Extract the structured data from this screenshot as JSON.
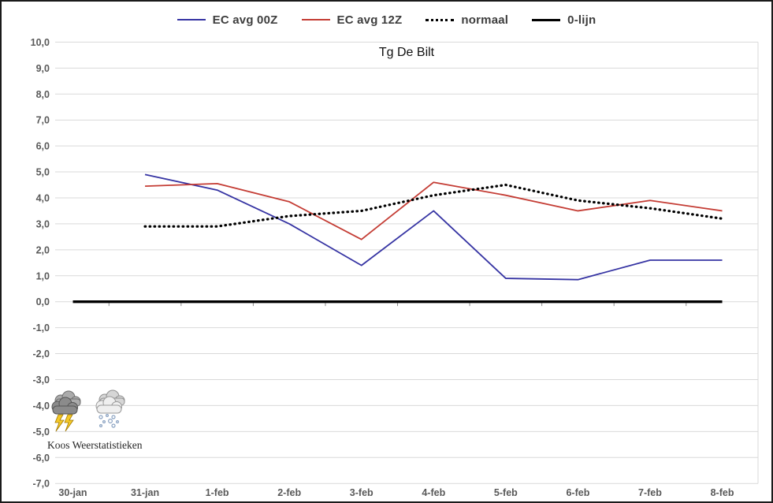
{
  "chart_data": {
    "type": "line",
    "title": "Tg De Bilt",
    "xlabel": "",
    "ylabel": "",
    "categories": [
      "30-jan",
      "31-jan",
      "1-feb",
      "2-feb",
      "3-feb",
      "4-feb",
      "5-feb",
      "6-feb",
      "7-feb",
      "8-feb"
    ],
    "series": [
      {
        "name": "EC avg 00Z",
        "color": "#3634a3",
        "style": "solid",
        "width": 1.8,
        "values": [
          null,
          4.9,
          4.3,
          3.0,
          1.4,
          3.5,
          0.9,
          0.85,
          1.6,
          1.6
        ]
      },
      {
        "name": "EC avg 12Z",
        "color": "#c43c34",
        "style": "solid",
        "width": 1.8,
        "values": [
          null,
          4.45,
          4.55,
          3.85,
          2.4,
          4.6,
          4.1,
          3.5,
          3.9,
          3.5
        ]
      },
      {
        "name": "normaal",
        "color": "#000000",
        "style": "dotted",
        "width": 3.2,
        "values": [
          null,
          2.9,
          2.9,
          3.3,
          3.5,
          4.1,
          4.5,
          3.9,
          3.6,
          3.2
        ]
      },
      {
        "name": "0-lijn",
        "color": "#000000",
        "style": "solid",
        "width": 3.4,
        "values": [
          0,
          0,
          0,
          0,
          0,
          0,
          0,
          0,
          0,
          0
        ]
      }
    ],
    "ylim": [
      -7,
      10
    ],
    "ytick_step": 1,
    "ytick_format": "comma-decimal-1",
    "grid": true,
    "gridline_color": "#d9d9d9",
    "tick_label_color": "#595959",
    "legend_position": "top"
  },
  "legend": {
    "items": [
      {
        "label": "EC avg 00Z"
      },
      {
        "label": "EC avg 12Z"
      },
      {
        "label": "normaal"
      },
      {
        "label": "0-lijn"
      }
    ]
  },
  "branding": {
    "caption": "Koos Weerstatistieken",
    "icons": [
      "thunderstorm-icon",
      "snow-shower-icon"
    ]
  }
}
